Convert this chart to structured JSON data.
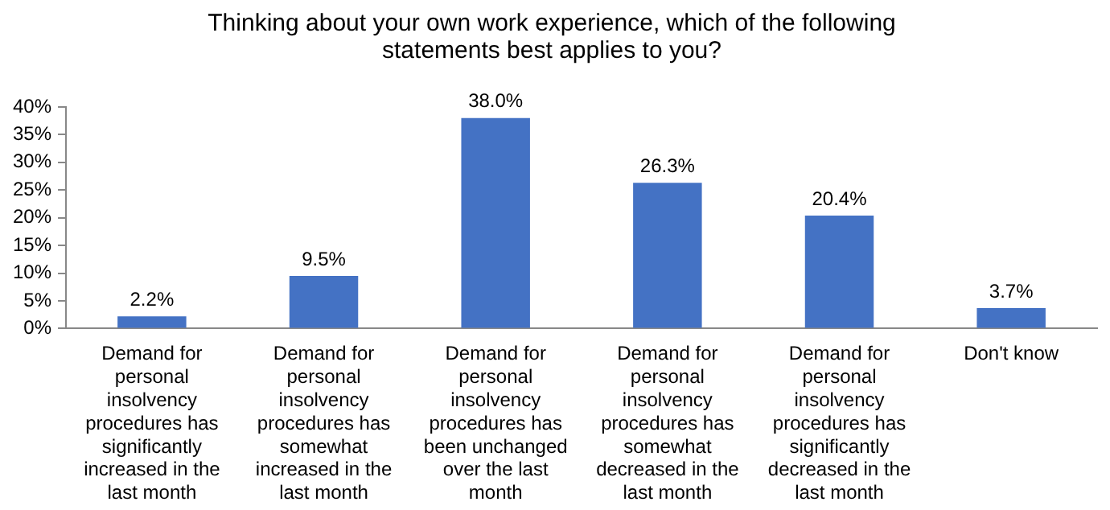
{
  "chart_data": {
    "type": "bar",
    "title": "Thinking about your own work experience, which of the following statements best applies to you?",
    "categories": [
      "Demand for personal insolvency procedures has significantly increased in the last month",
      "Demand for personal insolvency procedures has somewhat increased in the last month",
      "Demand for personal insolvency procedures has been unchanged over the last month",
      "Demand for personal insolvency procedures has somewhat decreased in the last month",
      "Demand for personal insolvency procedures has significantly decreased in the last month",
      "Don't know"
    ],
    "values": [
      2.2,
      9.5,
      38.0,
      26.3,
      20.4,
      3.7
    ],
    "value_labels": [
      "2.2%",
      "9.5%",
      "38.0%",
      "26.3%",
      "20.4%",
      "3.7%"
    ],
    "color": "#4472c4",
    "ylim": [
      0,
      40
    ],
    "yticks": [
      {
        "value": 0,
        "label": "0%"
      },
      {
        "value": 5,
        "label": "5%"
      },
      {
        "value": 10,
        "label": "10%"
      },
      {
        "value": 15,
        "label": "15%"
      },
      {
        "value": 20,
        "label": "20%"
      },
      {
        "value": 25,
        "label": "25%"
      },
      {
        "value": 30,
        "label": "30%"
      },
      {
        "value": 35,
        "label": "35%"
      },
      {
        "value": 40,
        "label": "40%"
      }
    ],
    "grid": false,
    "legend": false
  }
}
